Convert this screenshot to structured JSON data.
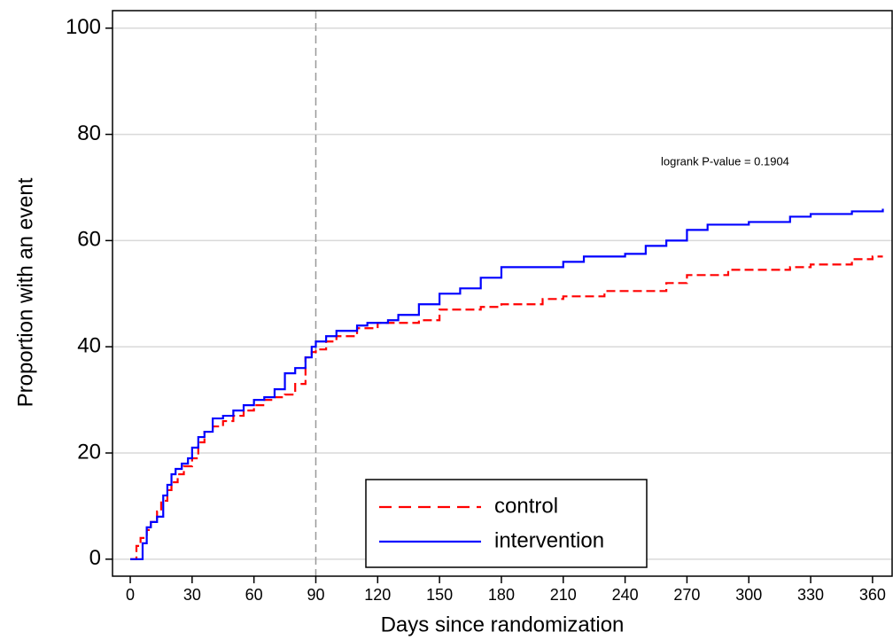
{
  "chart_data": {
    "type": "step",
    "x_label": "Days since randomization",
    "y_label": "Proportion with an event",
    "annotation": "logrank P-value = 0.1904",
    "xlim": [
      -8.6,
      369.5
    ],
    "ylim": [
      -3.2,
      103.3
    ],
    "xticks": [
      0,
      30,
      60,
      90,
      120,
      150,
      180,
      210,
      240,
      270,
      300,
      330,
      360
    ],
    "yticks": [
      0,
      20,
      40,
      60,
      80,
      100
    ],
    "grid": true,
    "reference_line_x": 90,
    "legend_position": "bottom-center",
    "series": [
      {
        "name": "control",
        "color": "#ff0000",
        "dash": true,
        "x": [
          0,
          3,
          5,
          8,
          10,
          13,
          15,
          18,
          20,
          23,
          26,
          30,
          33,
          36,
          40,
          45,
          50,
          55,
          60,
          65,
          70,
          75,
          80,
          85,
          88,
          90,
          95,
          100,
          110,
          120,
          140,
          150,
          170,
          180,
          200,
          210,
          230,
          250,
          260,
          270,
          290,
          300,
          320,
          330,
          350,
          360,
          365
        ],
        "values": [
          0,
          2.5,
          4,
          5.5,
          7,
          9,
          11,
          13,
          14.5,
          16,
          17.5,
          19,
          22,
          24,
          25,
          26,
          27,
          28,
          29,
          30,
          30.5,
          31,
          33,
          38,
          39,
          39.5,
          41,
          42,
          43.5,
          44.5,
          45,
          47,
          47.5,
          48,
          49,
          49.5,
          50.5,
          50.5,
          52,
          53.5,
          54.5,
          54.5,
          55,
          55.5,
          56.5,
          57,
          57
        ]
      },
      {
        "name": "intervention",
        "color": "#0000ff",
        "dash": false,
        "x": [
          0,
          4,
          6,
          8,
          10,
          13,
          16,
          18,
          20,
          22,
          25,
          28,
          30,
          33,
          36,
          40,
          45,
          50,
          55,
          60,
          65,
          70,
          75,
          80,
          85,
          88,
          90,
          95,
          100,
          110,
          115,
          125,
          130,
          140,
          150,
          160,
          170,
          180,
          210,
          220,
          240,
          250,
          260,
          270,
          280,
          300,
          320,
          330,
          350,
          360,
          365
        ],
        "values": [
          0,
          0,
          3,
          6,
          7,
          8,
          12,
          14,
          16,
          17,
          18,
          19,
          21,
          23,
          24,
          26.5,
          27,
          28,
          29,
          30,
          30.5,
          32,
          35,
          36,
          38,
          40,
          41,
          42,
          43,
          44,
          44.5,
          45,
          46,
          48,
          50,
          51,
          53,
          55,
          56,
          57,
          57.5,
          59,
          60,
          62,
          63,
          63.5,
          64.5,
          65,
          65.5,
          65.5,
          66
        ]
      }
    ]
  }
}
